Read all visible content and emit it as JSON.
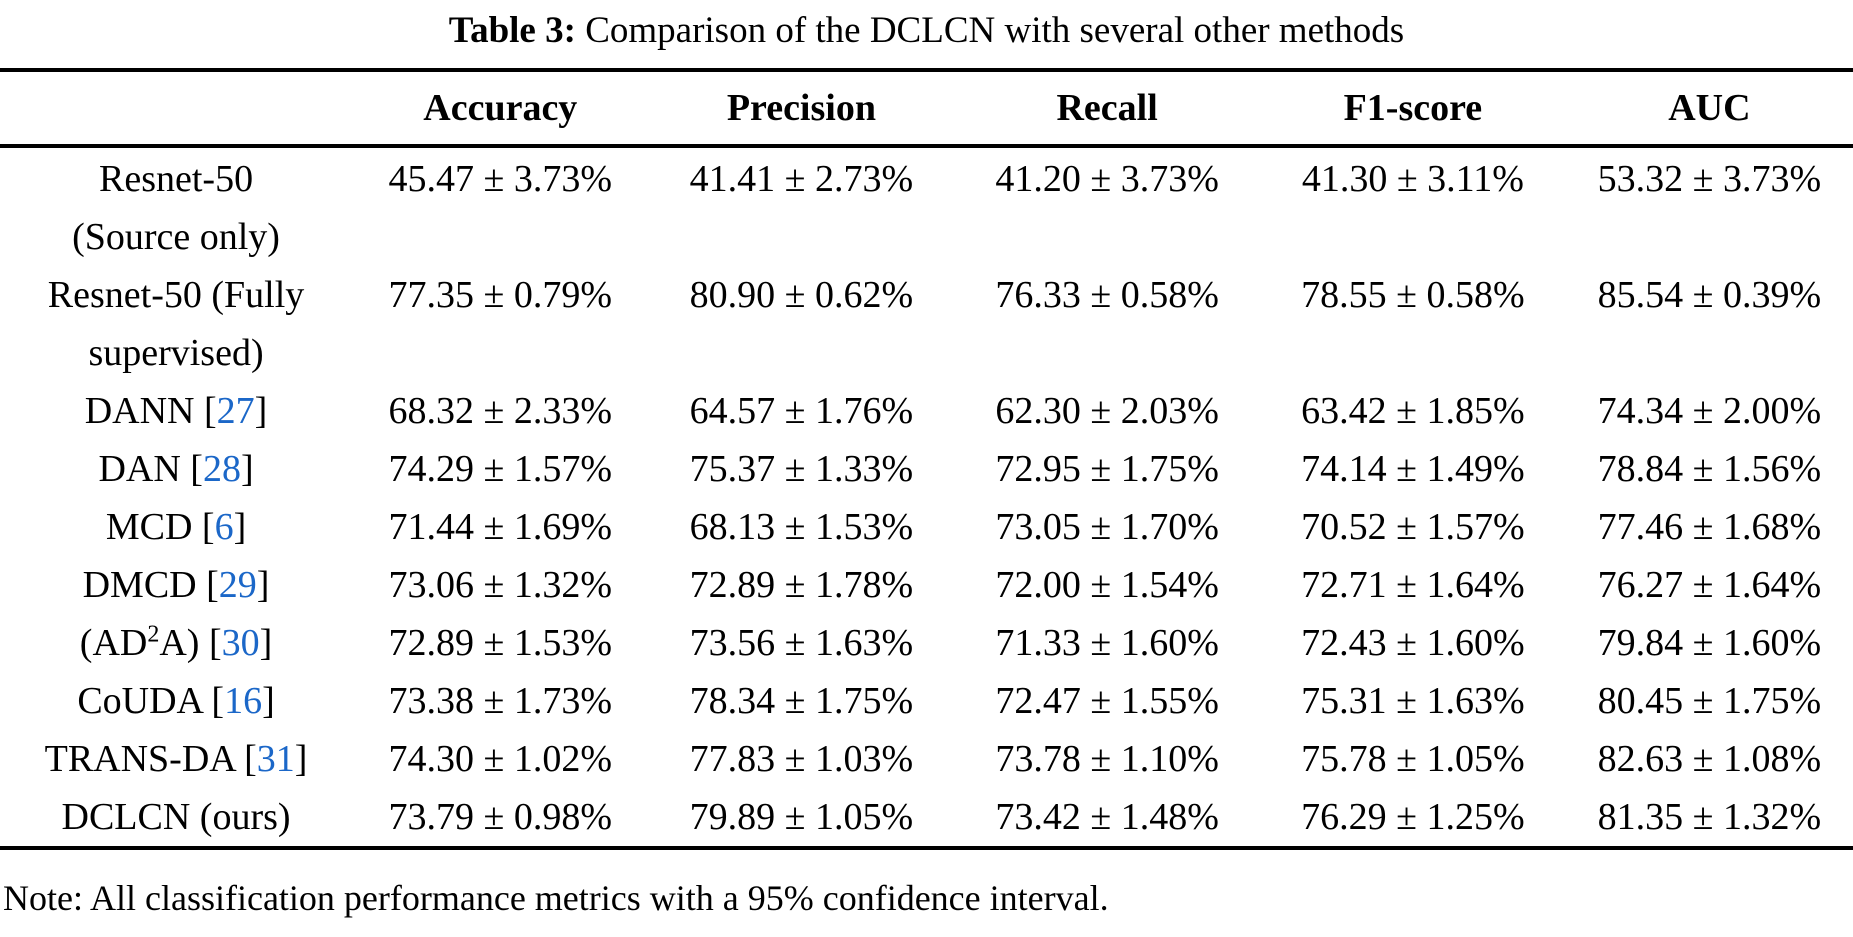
{
  "title": {
    "bold": "Table 3:",
    "rest": "Comparison of the DCLCN with several other methods"
  },
  "columns": [
    "Accuracy",
    "Precision",
    "Recall",
    "F1-score",
    "AUC"
  ],
  "rows": [
    {
      "name": "Resnet-50",
      "name2": "(Source only)",
      "cite": "",
      "values": [
        "45.47 ± 3.73%",
        "41.41 ± 2.73%",
        "41.20 ± 3.73%",
        "41.30 ± 3.11%",
        "53.32 ± 3.73%"
      ]
    },
    {
      "name": "Resnet-50 (Fully",
      "name2": "supervised)",
      "cite": "",
      "values": [
        "77.35 ± 0.79%",
        "80.90 ± 0.62%",
        "76.33 ± 0.58%",
        "78.55 ± 0.58%",
        "85.54 ± 0.39%"
      ]
    },
    {
      "name": "DANN",
      "cite": "27",
      "values": [
        "68.32 ± 2.33%",
        "64.57 ± 1.76%",
        "62.30 ± 2.03%",
        "63.42 ± 1.85%",
        "74.34 ± 2.00%"
      ]
    },
    {
      "name": "DAN",
      "cite": "28",
      "values": [
        "74.29 ± 1.57%",
        "75.37 ± 1.33%",
        "72.95 ± 1.75%",
        "74.14 ± 1.49%",
        "78.84 ± 1.56%"
      ]
    },
    {
      "name": "MCD",
      "cite": "6",
      "values": [
        "71.44 ± 1.69%",
        "68.13 ± 1.53%",
        "73.05 ± 1.70%",
        "70.52 ± 1.57%",
        "77.46 ± 1.68%"
      ]
    },
    {
      "name": "DMCD",
      "cite": "29",
      "values": [
        "73.06 ± 1.32%",
        "72.89 ± 1.78%",
        "72.00 ± 1.54%",
        "72.71 ± 1.64%",
        "76.27 ± 1.64%"
      ]
    },
    {
      "name": "(AD",
      "sup": "2",
      "name_after": "A)",
      "cite": "30",
      "values": [
        "72.89 ± 1.53%",
        "73.56 ± 1.63%",
        "71.33 ± 1.60%",
        "72.43 ± 1.60%",
        "79.84 ± 1.60%"
      ]
    },
    {
      "name": "CoUDA",
      "cite": "16",
      "values": [
        "73.38 ± 1.73%",
        "78.34 ± 1.75%",
        "72.47 ± 1.55%",
        "75.31 ± 1.63%",
        "80.45 ± 1.75%"
      ]
    },
    {
      "name": "TRANS-DA",
      "cite": "31",
      "values": [
        "74.30 ± 1.02%",
        "77.83 ± 1.03%",
        "73.78 ± 1.10%",
        "75.78 ± 1.05%",
        "82.63 ± 1.08%"
      ]
    },
    {
      "name": "DCLCN (ours)",
      "cite": "",
      "values": [
        "73.79 ± 0.98%",
        "79.89 ± 1.05%",
        "73.42 ± 1.48%",
        "76.29 ± 1.25%",
        "81.35 ± 1.32%"
      ]
    }
  ],
  "note": "Note: All classification performance metrics with a 95% confidence interval.",
  "colors": {
    "citation": "#1b67c8",
    "text": "#000000",
    "rule": "#000000"
  }
}
